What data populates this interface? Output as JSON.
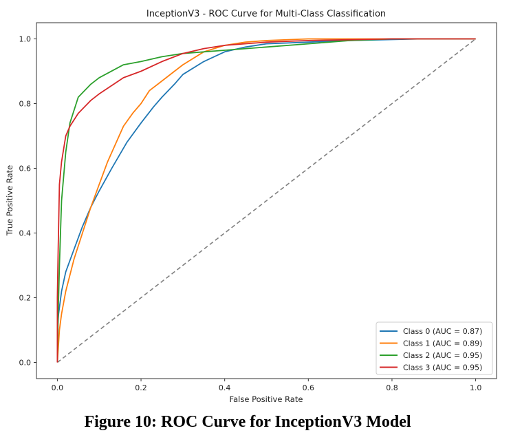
{
  "caption": "Figure 10: ROC Curve for InceptionV3 Model",
  "chart_data": {
    "type": "line",
    "title": "InceptionV3 - ROC Curve for Multi-Class Classification",
    "xlabel": "False Positive Rate",
    "ylabel": "True Positive Rate",
    "xlim": [
      -0.05,
      1.05
    ],
    "ylim": [
      -0.05,
      1.05
    ],
    "xticks": [
      "0.0",
      "0.2",
      "0.4",
      "0.6",
      "0.8",
      "1.0"
    ],
    "yticks": [
      "0.0",
      "0.2",
      "0.4",
      "0.6",
      "0.8",
      "1.0"
    ],
    "grid": false,
    "legend_position": "bottom-right",
    "series": [
      {
        "name": "Class 0 (AUC = 0.87)",
        "color": "#1f77b4",
        "x": [
          0,
          0.0,
          0.003,
          0.01,
          0.02,
          0.04,
          0.06,
          0.08,
          0.1,
          0.13,
          0.166,
          0.2,
          0.23,
          0.25,
          0.28,
          0.3,
          0.35,
          0.4,
          0.45,
          0.5,
          0.6,
          0.7,
          0.87,
          1.0
        ],
        "y": [
          0,
          0.1,
          0.15,
          0.22,
          0.28,
          0.35,
          0.42,
          0.48,
          0.53,
          0.6,
          0.68,
          0.74,
          0.79,
          0.82,
          0.86,
          0.89,
          0.93,
          0.96,
          0.975,
          0.985,
          0.99,
          0.995,
          1.0,
          1.0
        ]
      },
      {
        "name": "Class 1 (AUC = 0.89)",
        "color": "#ff7f0e",
        "x": [
          0,
          0.005,
          0.01,
          0.02,
          0.04,
          0.06,
          0.08,
          0.1,
          0.12,
          0.158,
          0.18,
          0.2,
          0.22,
          0.25,
          0.28,
          0.3,
          0.35,
          0.4,
          0.45,
          0.5,
          0.6,
          1.0
        ],
        "y": [
          0,
          0.1,
          0.15,
          0.22,
          0.32,
          0.4,
          0.48,
          0.55,
          0.62,
          0.73,
          0.77,
          0.8,
          0.84,
          0.87,
          0.9,
          0.92,
          0.96,
          0.98,
          0.99,
          0.995,
          1.0,
          1.0
        ]
      },
      {
        "name": "Class 2 (AUC = 0.95)",
        "color": "#2ca02c",
        "x": [
          0,
          0.002,
          0.005,
          0.01,
          0.02,
          0.03,
          0.05,
          0.08,
          0.1,
          0.158,
          0.2,
          0.25,
          0.3,
          0.4,
          0.5,
          0.6,
          0.7,
          0.8,
          1.0
        ],
        "y": [
          0,
          0.15,
          0.3,
          0.5,
          0.65,
          0.74,
          0.82,
          0.86,
          0.88,
          0.92,
          0.93,
          0.945,
          0.955,
          0.965,
          0.975,
          0.985,
          0.995,
          1.0,
          1.0
        ]
      },
      {
        "name": "Class 3 (AUC = 0.95)",
        "color": "#d62728",
        "x": [
          0,
          0.0,
          0.002,
          0.005,
          0.01,
          0.02,
          0.03,
          0.05,
          0.08,
          0.1,
          0.158,
          0.2,
          0.25,
          0.3,
          0.35,
          0.4,
          0.5,
          0.6,
          0.8,
          1.0
        ],
        "y": [
          0,
          0.2,
          0.35,
          0.55,
          0.62,
          0.7,
          0.73,
          0.77,
          0.81,
          0.83,
          0.88,
          0.9,
          0.93,
          0.955,
          0.97,
          0.98,
          0.99,
          0.995,
          1.0,
          1.0
        ]
      },
      {
        "name": "Random (diagonal)",
        "color": "#808080",
        "dashed": true,
        "x": [
          0,
          1
        ],
        "y": [
          0,
          1
        ]
      }
    ],
    "legend": [
      {
        "label": "Class 0 (AUC = 0.87)",
        "color": "#1f77b4"
      },
      {
        "label": "Class 1 (AUC = 0.89)",
        "color": "#ff7f0e"
      },
      {
        "label": "Class 2 (AUC = 0.95)",
        "color": "#2ca02c"
      },
      {
        "label": "Class 3 (AUC = 0.95)",
        "color": "#d62728"
      }
    ]
  }
}
